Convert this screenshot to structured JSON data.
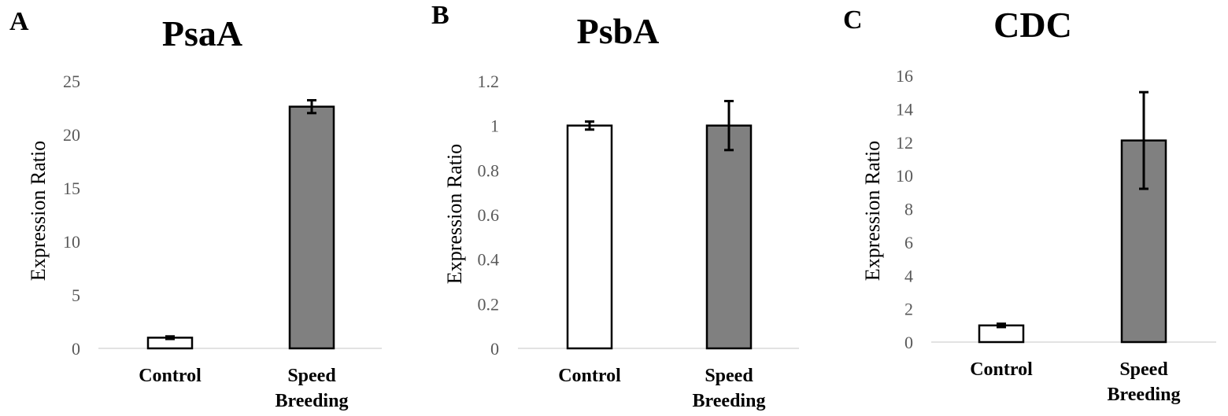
{
  "chart_data": [
    {
      "type": "bar",
      "panel_letter": "A",
      "title": "PsaA",
      "xlabel": "",
      "ylabel": "Expression Ratio",
      "ylim": [
        0,
        25
      ],
      "yticks": [
        "0",
        "5",
        "10",
        "15",
        "20",
        "25"
      ],
      "grid": false,
      "categories": [
        [
          "Control"
        ],
        [
          "Speed",
          "Breeding"
        ]
      ],
      "values": [
        1.0,
        22.6
      ],
      "errors": [
        0.12,
        0.6
      ],
      "bar_colors": [
        "#ffffff",
        "#808080"
      ]
    },
    {
      "type": "bar",
      "panel_letter": "B",
      "title": "PsbA",
      "xlabel": "",
      "ylabel": "Expression Ratio",
      "ylim": [
        0,
        1.2
      ],
      "yticks": [
        "0",
        "0.2",
        "0.4",
        "0.6",
        "0.8",
        "1",
        "1.2"
      ],
      "grid": false,
      "categories": [
        [
          "Control"
        ],
        [
          "Speed",
          "Breeding"
        ]
      ],
      "values": [
        1.0,
        1.0
      ],
      "errors": [
        0.018,
        0.11
      ],
      "bar_colors": [
        "#ffffff",
        "#808080"
      ]
    },
    {
      "type": "bar",
      "panel_letter": "C",
      "title": "CDC",
      "xlabel": "",
      "ylabel": "Expression Ratio",
      "ylim": [
        0,
        16
      ],
      "yticks": [
        "0",
        "2",
        "4",
        "6",
        "8",
        "10",
        "12",
        "14",
        "16"
      ],
      "grid": false,
      "categories": [
        [
          "Control"
        ],
        [
          "Speed",
          "Breeding"
        ]
      ],
      "values": [
        1.0,
        12.1
      ],
      "errors": [
        0.1,
        2.9
      ],
      "bar_colors": [
        "#ffffff",
        "#808080"
      ]
    }
  ],
  "colors": {
    "axis": "#d9d9d9",
    "tick_text": "#595959",
    "bar_edge": "#000000"
  }
}
